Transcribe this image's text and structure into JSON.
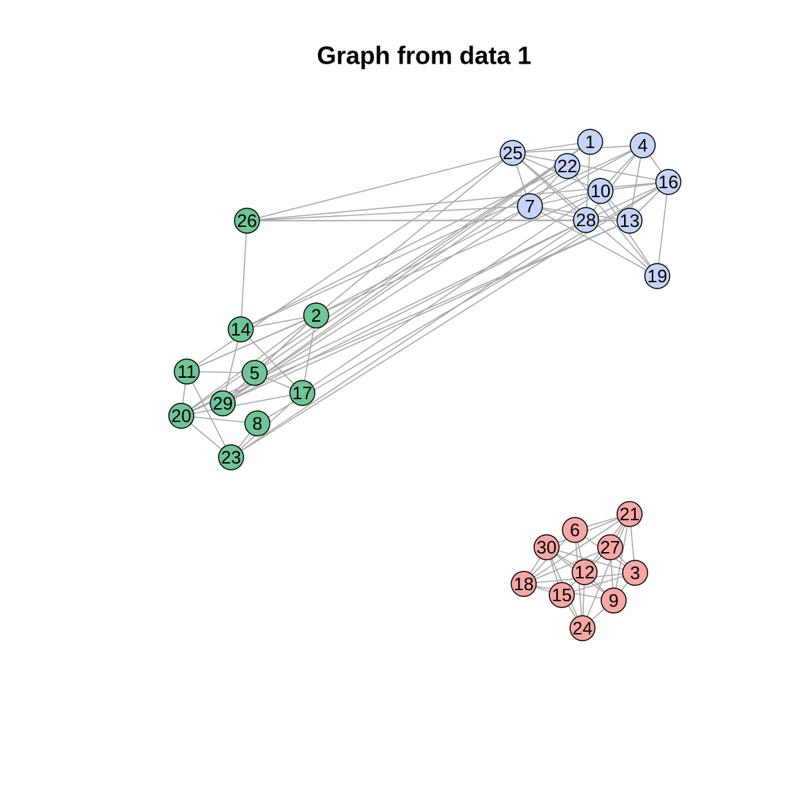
{
  "title": "Graph from data 1",
  "nodes": [
    {
      "label": "1"
    },
    {
      "label": "4"
    },
    {
      "label": "25"
    },
    {
      "label": "22"
    },
    {
      "label": "16"
    },
    {
      "label": "10"
    },
    {
      "label": "7"
    },
    {
      "label": "28"
    },
    {
      "label": "13"
    },
    {
      "label": "19"
    },
    {
      "label": "26"
    },
    {
      "label": "2"
    },
    {
      "label": "14"
    },
    {
      "label": "11"
    },
    {
      "label": "5"
    },
    {
      "label": "17"
    },
    {
      "label": "29"
    },
    {
      "label": "20"
    },
    {
      "label": "8"
    },
    {
      "label": "23"
    },
    {
      "label": "21"
    },
    {
      "label": "6"
    },
    {
      "label": "30"
    },
    {
      "label": "27"
    },
    {
      "label": "12"
    },
    {
      "label": "3"
    },
    {
      "label": "18"
    },
    {
      "label": "15"
    },
    {
      "label": "9"
    },
    {
      "label": "24"
    }
  ]
}
